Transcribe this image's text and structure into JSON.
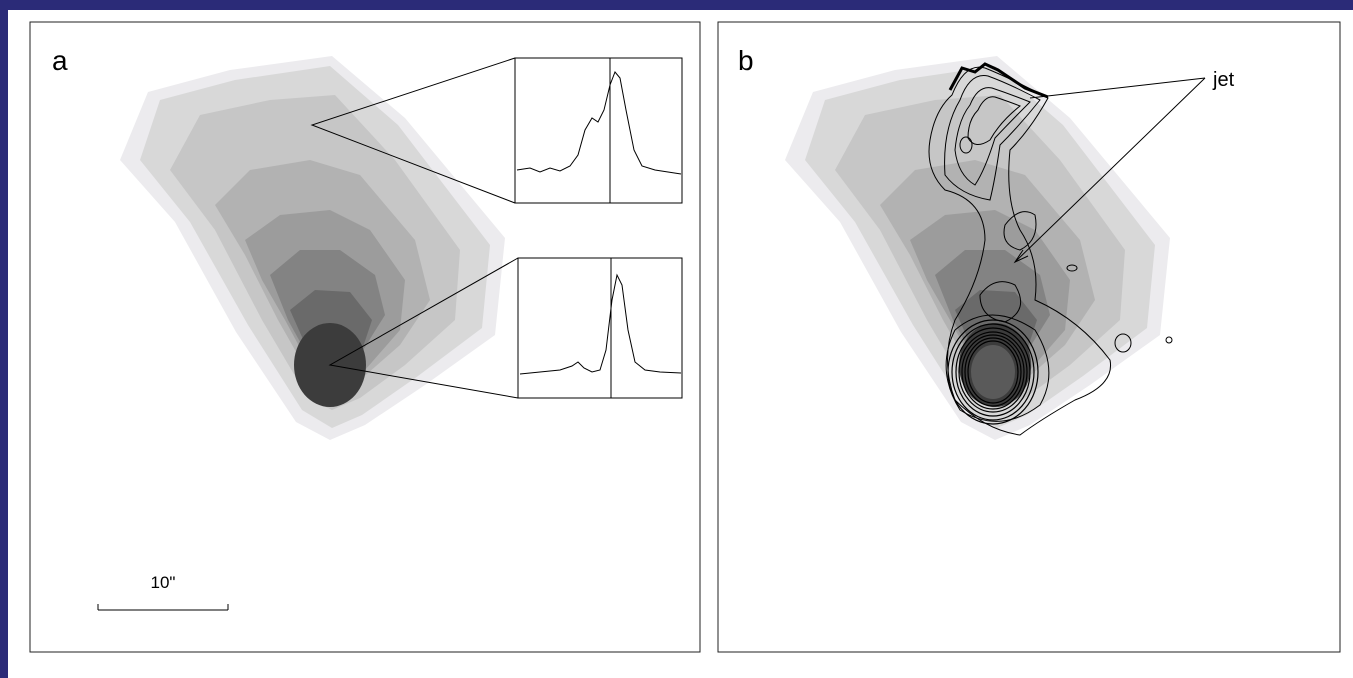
{
  "panel_a": {
    "label": "a",
    "scale_bar": "10\""
  },
  "panel_b": {
    "label": "b",
    "annotation": "jet"
  }
}
